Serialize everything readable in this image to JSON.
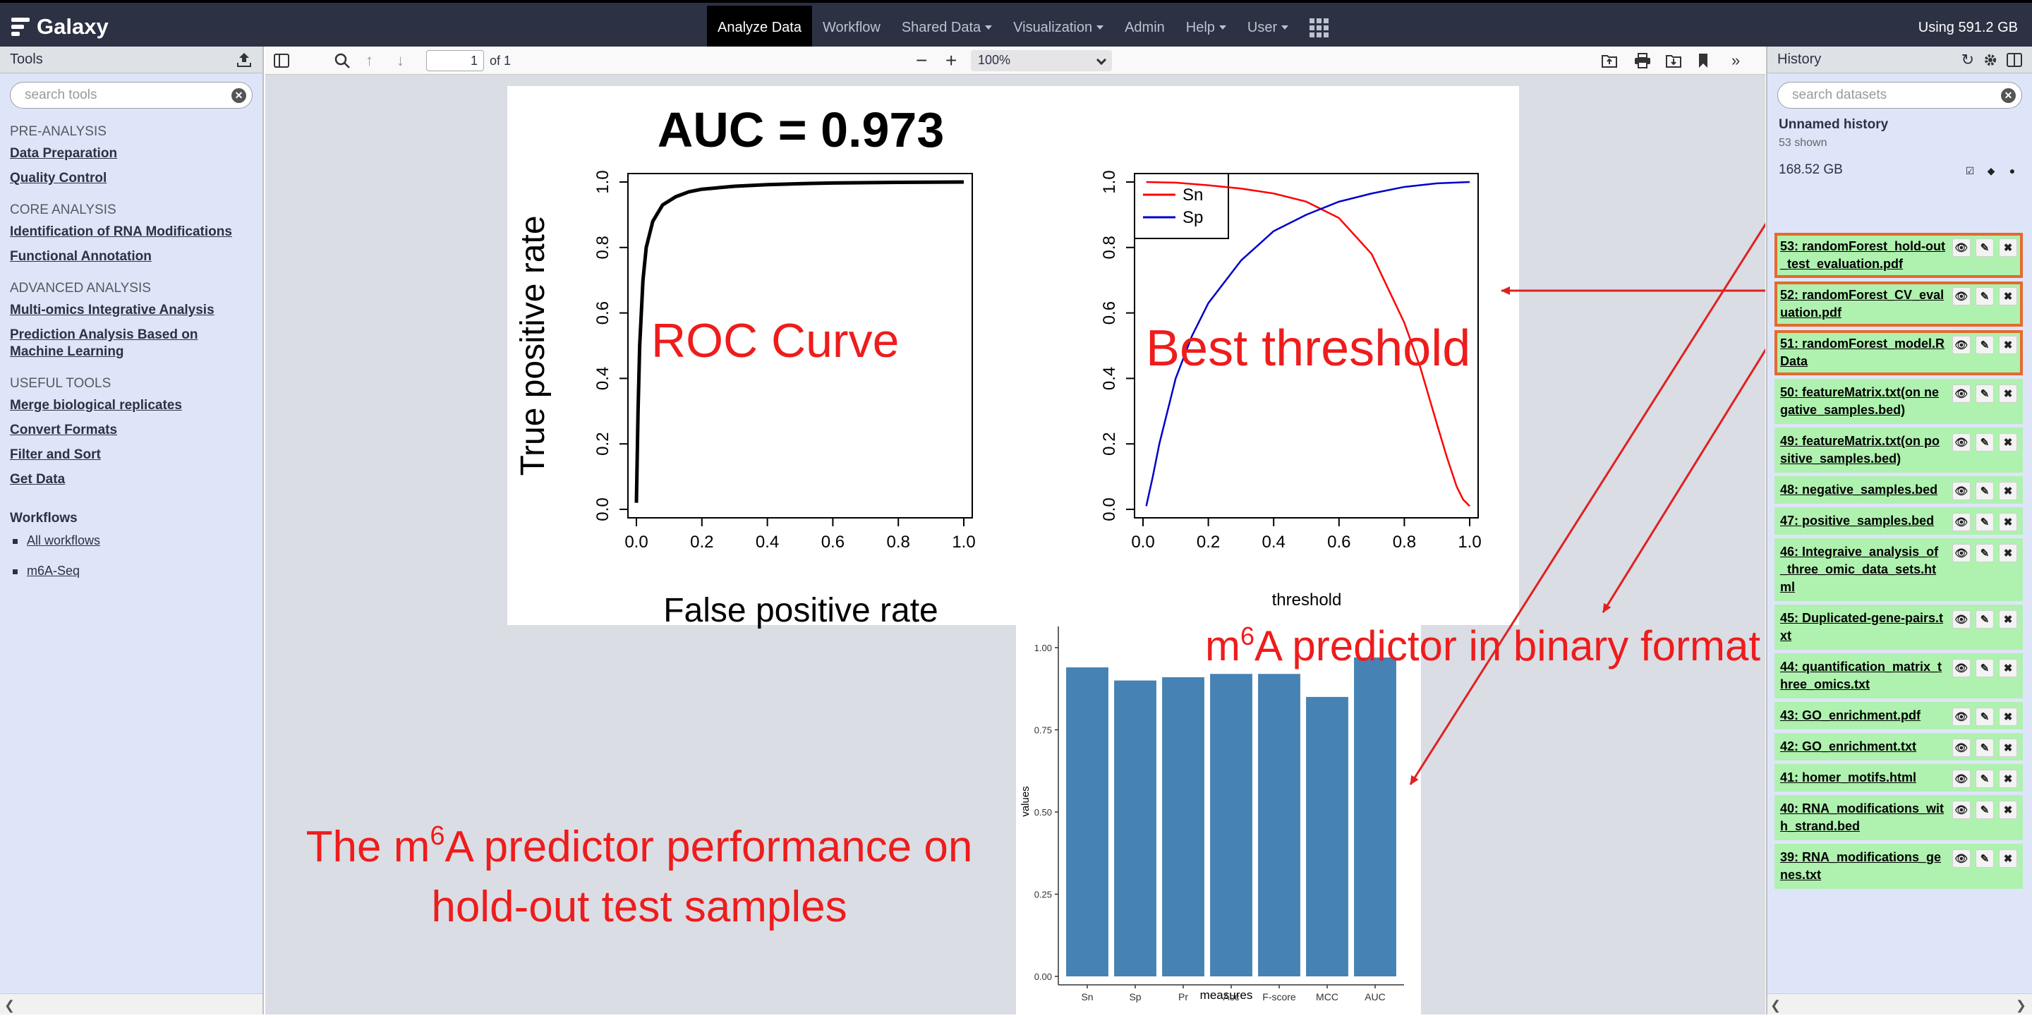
{
  "masthead": {
    "brand": "Galaxy",
    "nav": [
      {
        "label": "Analyze Data",
        "active": true,
        "dropdown": false
      },
      {
        "label": "Workflow",
        "active": false,
        "dropdown": false
      },
      {
        "label": "Shared Data",
        "active": false,
        "dropdown": true
      },
      {
        "label": "Visualization",
        "active": false,
        "dropdown": true
      },
      {
        "label": "Admin",
        "active": false,
        "dropdown": false
      },
      {
        "label": "Help",
        "active": false,
        "dropdown": true
      },
      {
        "label": "User",
        "active": false,
        "dropdown": true
      }
    ],
    "quota": "Using 591.2 GB"
  },
  "tools_panel": {
    "title": "Tools",
    "search_placeholder": "search tools",
    "sections": [
      {
        "heading": "PRE-ANALYSIS",
        "items": [
          "Data Preparation",
          "Quality Control"
        ]
      },
      {
        "heading": "CORE ANALYSIS",
        "items": [
          "Identification of RNA Modifications",
          "Functional Annotation"
        ]
      },
      {
        "heading": "ADVANCED ANALYSIS",
        "items": [
          "Multi-omics Integrative Analysis",
          "Prediction Analysis Based on Machine Learning"
        ]
      },
      {
        "heading": "USEFUL TOOLS",
        "items": [
          "Merge biological replicates",
          "Convert Formats",
          "Filter and Sort",
          "Get Data"
        ]
      }
    ],
    "workflows_heading": "Workflows",
    "workflows": [
      "All workflows",
      "m6A-Seq"
    ]
  },
  "pdf_toolbar": {
    "page": "1",
    "of_pages": "of 1",
    "zoom": "100%"
  },
  "figure": {
    "auc_title": "AUC = 0.973",
    "roc": {
      "ylabel": "True positive rate",
      "xlabel": "False positive rate",
      "ticks": [
        "0.0",
        "0.2",
        "0.4",
        "0.6",
        "0.8",
        "1.0"
      ]
    },
    "threshold": {
      "xlabel": "threshold",
      "ticks": [
        "0.0",
        "0.2",
        "0.4",
        "0.6",
        "0.8",
        "1.0"
      ],
      "legend": [
        "Sn",
        "Sp"
      ],
      "colors": {
        "Sn": "#ff0000",
        "Sp": "#0000cc"
      }
    },
    "bar": {
      "xlabel": "measures",
      "ylabel": "values",
      "yticks": [
        "0.00",
        "0.25",
        "0.50",
        "0.75",
        "1.00"
      ],
      "bar_color": "#4682b4"
    },
    "annotations": {
      "roc": "ROC Curve",
      "threshold": "Best threshold",
      "predictor_pre": "m",
      "predictor_sup": "6",
      "predictor_post": "A predictor in binary format",
      "perf_line1_pre": "The m",
      "perf_line1_sup": "6",
      "perf_line1_post": "A predictor performance on",
      "perf_line2": "hold-out test samples"
    },
    "annotation_color": "#ee1c1c"
  },
  "chart_data": [
    {
      "type": "line",
      "title": "AUC = 0.973",
      "xlabel": "False positive rate",
      "ylabel": "True positive rate",
      "xlim": [
        0,
        1
      ],
      "ylim": [
        0,
        1
      ],
      "series": [
        {
          "x": [
            0,
            0.005,
            0.01,
            0.02,
            0.03,
            0.05,
            0.08,
            0.12,
            0.16,
            0.2,
            0.3,
            0.4,
            0.5,
            0.6,
            0.8,
            1.0
          ],
          "y": [
            0.02,
            0.3,
            0.5,
            0.7,
            0.8,
            0.88,
            0.93,
            0.955,
            0.97,
            0.978,
            0.987,
            0.992,
            0.995,
            0.997,
            0.999,
            1.0
          ]
        }
      ]
    },
    {
      "type": "line",
      "xlabel": "threshold",
      "ylabel": "",
      "xlim": [
        0,
        1
      ],
      "ylim": [
        0,
        1
      ],
      "legend": "top-left",
      "series": [
        {
          "name": "Sn",
          "x": [
            0.01,
            0.1,
            0.2,
            0.3,
            0.4,
            0.5,
            0.6,
            0.7,
            0.8,
            0.85,
            0.9,
            0.93,
            0.96,
            0.98,
            1.0
          ],
          "y": [
            1.0,
            0.998,
            0.99,
            0.98,
            0.965,
            0.94,
            0.89,
            0.78,
            0.57,
            0.43,
            0.26,
            0.16,
            0.07,
            0.03,
            0.01
          ]
        },
        {
          "name": "Sp",
          "x": [
            0.01,
            0.03,
            0.05,
            0.1,
            0.15,
            0.2,
            0.3,
            0.4,
            0.5,
            0.6,
            0.7,
            0.8,
            0.9,
            1.0
          ],
          "y": [
            0.01,
            0.1,
            0.2,
            0.4,
            0.53,
            0.63,
            0.76,
            0.85,
            0.9,
            0.94,
            0.965,
            0.985,
            0.996,
            1.0
          ]
        }
      ]
    },
    {
      "type": "bar",
      "xlabel": "measures",
      "ylabel": "values",
      "ylim": [
        0,
        1
      ],
      "categories": [
        "Sn",
        "Sp",
        "Pr",
        "Acc",
        "F-score",
        "MCC",
        "AUC"
      ],
      "values": [
        0.94,
        0.9,
        0.91,
        0.92,
        0.92,
        0.85,
        0.97
      ]
    }
  ],
  "history_panel": {
    "title": "History",
    "search_placeholder": "search datasets",
    "name": "Unnamed history",
    "shown": "53 shown",
    "size": "168.52 GB",
    "datasets": [
      {
        "label": "53: randomForest_hold-out_test_evaluation.pdf",
        "highlight": true
      },
      {
        "label": "52: randomForest_CV_evaluation.pdf",
        "highlight": true
      },
      {
        "label": "51: randomForest_model.RData",
        "highlight": true
      },
      {
        "label": "50: featureMatrix.txt(on negative_samples.bed)",
        "highlight": false
      },
      {
        "label": "49: featureMatrix.txt(on positive_samples.bed)",
        "highlight": false
      },
      {
        "label": "48: negative_samples.bed",
        "highlight": false
      },
      {
        "label": "47: positive_samples.bed",
        "highlight": false
      },
      {
        "label": "46: Integraive_analysis_of_three_omic_data_sets.html",
        "highlight": false
      },
      {
        "label": "45: Duplicated-gene-pairs.txt",
        "highlight": false
      },
      {
        "label": "44: quantification_matrix_three_omics.txt",
        "highlight": false
      },
      {
        "label": "43: GO_enrichment.pdf",
        "highlight": false
      },
      {
        "label": "42: GO_enrichment.txt",
        "highlight": false
      },
      {
        "label": "41: homer_motifs.html",
        "highlight": false
      },
      {
        "label": "40: RNA_modifications_with_strand.bed",
        "highlight": false
      },
      {
        "label": "39: RNA_modifications_genes.txt",
        "highlight": false
      }
    ]
  }
}
